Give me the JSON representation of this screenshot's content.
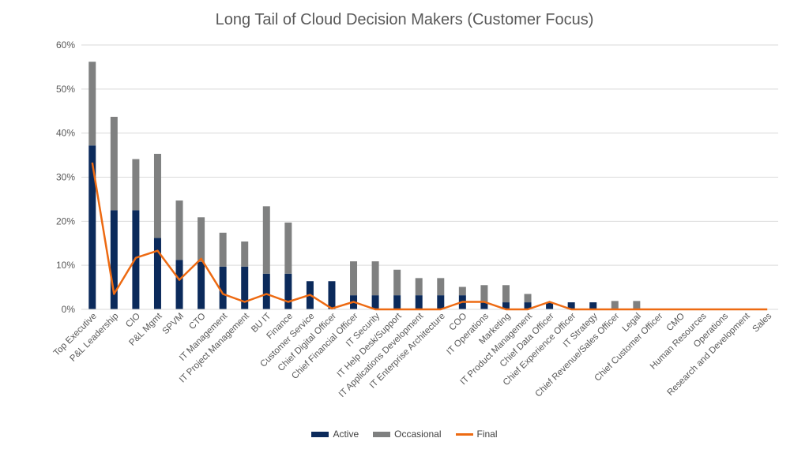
{
  "chart_data": {
    "type": "bar",
    "stacked": true,
    "title": "Long Tail of Cloud Decision Makers (Customer Focus)",
    "xlabel": "",
    "ylabel": "",
    "ylim": [
      0,
      0.6
    ],
    "yticks": [
      "0%",
      "10%",
      "20%",
      "30%",
      "40%",
      "50%",
      "60%"
    ],
    "grid": true,
    "legend_position": "bottom",
    "categories": [
      "Top Executive",
      "P&L Leadership",
      "CIO",
      "P&L Mgmt",
      "SPVM",
      "CTO",
      "IT Management",
      "IT Project Management",
      "BU IT",
      "Finance",
      "Customer Service",
      "Chief Digital Officer",
      "Chief Financial Officer",
      "IT Security",
      "IT Help Desk/Support",
      "IT Applications Development",
      "IT Enterprise Architecture",
      "COO",
      "IT Operations",
      "Marketing",
      "IT Product Management",
      "Chief Data Officer",
      "Chief Experience Officer",
      "IT Strategy",
      "Chief Revenue/Sales Officer",
      "Legal",
      "Chief Customer Officer",
      "CMO",
      "Human Resources",
      "Operations",
      "Research and Development",
      "Sales"
    ],
    "series": [
      {
        "name": "Active",
        "kind": "bar",
        "color": "#0b2a5b",
        "values": [
          0.372,
          0.225,
          0.225,
          0.162,
          0.112,
          0.108,
          0.097,
          0.097,
          0.081,
          0.081,
          0.064,
          0.064,
          0.032,
          0.032,
          0.032,
          0.032,
          0.032,
          0.032,
          0.016,
          0.016,
          0.016,
          0.016,
          0.016,
          0.016,
          0,
          0,
          0,
          0,
          0,
          0,
          0,
          0
        ]
      },
      {
        "name": "Occasional",
        "kind": "bar",
        "color": "#7f8080",
        "values": [
          0.19,
          0.212,
          0.116,
          0.191,
          0.135,
          0.101,
          0.077,
          0.057,
          0.153,
          0.116,
          0,
          0,
          0.077,
          0.077,
          0.058,
          0.039,
          0.039,
          0.019,
          0.039,
          0.039,
          0.019,
          0,
          0,
          0,
          0.019,
          0.019,
          0,
          0,
          0,
          0,
          0,
          0
        ]
      },
      {
        "name": "Final",
        "kind": "line",
        "color": "#ed6a12",
        "values": [
          0.333,
          0.035,
          0.117,
          0.133,
          0.067,
          0.115,
          0.035,
          0.017,
          0.035,
          0.017,
          0.033,
          0.002,
          0.017,
          0,
          0,
          0,
          0,
          0.017,
          0.017,
          0,
          0,
          0.017,
          0,
          0,
          0,
          0,
          0,
          0,
          0,
          0,
          0,
          0
        ]
      }
    ]
  }
}
